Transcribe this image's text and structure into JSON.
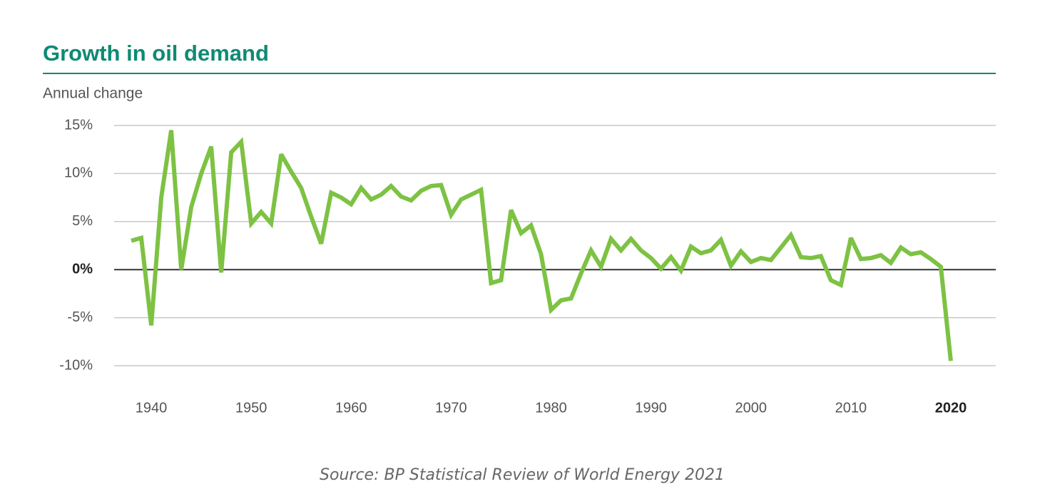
{
  "chart_data": {
    "type": "line",
    "title": "Growth in oil demand",
    "ylabel": "Annual change",
    "source": "Source: BP Statistical Review of World Energy 2021",
    "x": [
      1938,
      1939,
      1940,
      1941,
      1942,
      1943,
      1944,
      1945,
      1946,
      1947,
      1948,
      1949,
      1950,
      1951,
      1952,
      1953,
      1954,
      1955,
      1956,
      1957,
      1958,
      1959,
      1960,
      1961,
      1962,
      1963,
      1964,
      1965,
      1966,
      1967,
      1968,
      1969,
      1970,
      1971,
      1972,
      1973,
      1974,
      1975,
      1976,
      1977,
      1978,
      1979,
      1980,
      1981,
      1982,
      1983,
      1984,
      1985,
      1986,
      1987,
      1988,
      1989,
      1990,
      1991,
      1992,
      1993,
      1994,
      1995,
      1996,
      1997,
      1998,
      1999,
      2000,
      2001,
      2002,
      2003,
      2004,
      2005,
      2006,
      2007,
      2008,
      2009,
      2010,
      2011,
      2012,
      2013,
      2014,
      2015,
      2016,
      2017,
      2018,
      2019,
      2020
    ],
    "series": [
      {
        "name": "Annual change",
        "color": "#7dc243",
        "values": [
          3.0,
          3.3,
          -5.8,
          7.5,
          14.5,
          0,
          6.5,
          10,
          12.8,
          -0.3,
          12.2,
          13.3,
          4.8,
          6.0,
          4.8,
          12.0,
          10.2,
          8.5,
          5.5,
          2.7,
          8.0,
          7.5,
          6.8,
          8.5,
          7.3,
          7.8,
          8.7,
          7.6,
          7.2,
          8.2,
          8.7,
          8.8,
          5.7,
          7.3,
          7.8,
          8.3,
          -1.4,
          -1.1,
          6.2,
          3.8,
          4.6,
          1.6,
          -4.2,
          -3.2,
          -3.0,
          -0.4,
          2.0,
          0.3,
          3.2,
          2.0,
          3.2,
          2.0,
          1.2,
          0.1,
          1.3,
          -0.1,
          2.4,
          1.7,
          2.0,
          3.1,
          0.4,
          1.9,
          0.8,
          1.2,
          1.0,
          2.3,
          3.6,
          1.3,
          1.2,
          1.4,
          -1.1,
          -1.6,
          3.3,
          1.1,
          1.2,
          1.5,
          0.7,
          2.3,
          1.6,
          1.8,
          1.1,
          0.3,
          -9.5
        ]
      }
    ],
    "xlim": [
      1936,
      2024
    ],
    "xticks": [
      1940,
      1950,
      1960,
      1970,
      1980,
      1990,
      2000,
      2010,
      2020
    ],
    "ylim": [
      -10,
      15
    ],
    "yticks": [
      {
        "value": -10,
        "label": "-10%"
      },
      {
        "value": -5,
        "label": "-5%"
      },
      {
        "value": 0,
        "label": "0%"
      },
      {
        "value": 5,
        "label": "5%"
      },
      {
        "value": 10,
        "label": "10%"
      },
      {
        "value": 15,
        "label": "15%"
      }
    ],
    "grid": true
  }
}
